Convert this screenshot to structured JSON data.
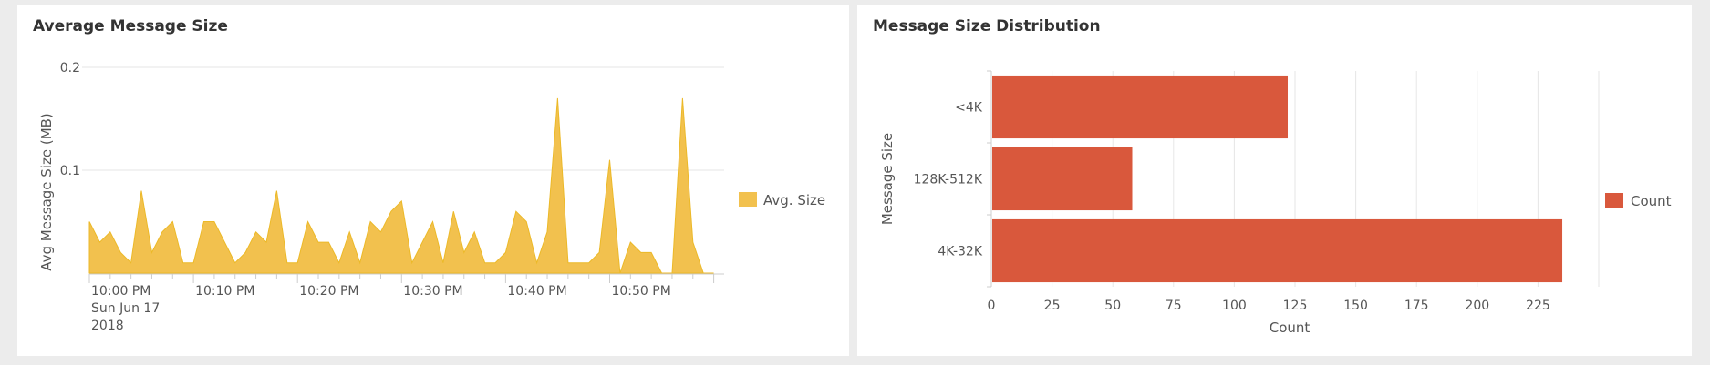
{
  "panels": {
    "left": {
      "title": "Average Message Size"
    },
    "right": {
      "title": "Message Size Distribution"
    }
  },
  "colors": {
    "area": "#f2c14e",
    "area_stroke": "#ecb928",
    "bar": "#d9583c",
    "grid": "#e6e6e6",
    "axis": "#cccccc"
  },
  "chart_data": [
    {
      "type": "area",
      "title": "Average Message Size",
      "ylabel": "Avg Message Size (MB)",
      "xlabel": "",
      "ylim": [
        0,
        0.2
      ],
      "yticks": [
        {
          "value": 0.1,
          "label": "0.1"
        },
        {
          "value": 0.2,
          "label": "0.2"
        }
      ],
      "xticks": [
        {
          "value": 0,
          "lines": [
            "10:00 PM",
            "Sun Jun 17",
            "2018"
          ]
        },
        {
          "value": 10,
          "lines": [
            "10:10 PM"
          ]
        },
        {
          "value": 20,
          "lines": [
            "10:20 PM"
          ]
        },
        {
          "value": 30,
          "lines": [
            "10:30 PM"
          ]
        },
        {
          "value": 40,
          "lines": [
            "10:40 PM"
          ]
        },
        {
          "value": 50,
          "lines": [
            "10:50 PM"
          ]
        }
      ],
      "xlim": [
        0,
        61
      ],
      "legend": "Avg. Size",
      "legend_position": "right",
      "x": [
        0,
        1,
        2,
        3,
        4,
        5,
        6,
        7,
        8,
        9,
        10,
        11,
        12,
        13,
        14,
        15,
        16,
        17,
        18,
        19,
        20,
        21,
        22,
        23,
        24,
        25,
        26,
        27,
        28,
        29,
        30,
        31,
        32,
        33,
        34,
        35,
        36,
        37,
        38,
        39,
        40,
        41,
        42,
        43,
        44,
        45,
        46,
        47,
        48,
        49,
        50,
        51,
        52,
        53,
        54,
        55,
        56,
        57,
        58,
        59,
        60
      ],
      "values": [
        0.05,
        0.03,
        0.04,
        0.02,
        0.01,
        0.08,
        0.02,
        0.04,
        0.05,
        0.01,
        0.01,
        0.05,
        0.05,
        0.03,
        0.01,
        0.02,
        0.04,
        0.03,
        0.08,
        0.01,
        0.01,
        0.05,
        0.03,
        0.03,
        0.01,
        0.04,
        0.01,
        0.05,
        0.04,
        0.06,
        0.07,
        0.01,
        0.03,
        0.05,
        0.01,
        0.06,
        0.02,
        0.04,
        0.01,
        0.01,
        0.02,
        0.06,
        0.05,
        0.01,
        0.04,
        0.17,
        0.01,
        0.01,
        0.01,
        0.02,
        0.11,
        0.0,
        0.03,
        0.02,
        0.02,
        0.0,
        0.0,
        0.17,
        0.03,
        0.0,
        0.0
      ]
    },
    {
      "type": "bar",
      "orientation": "horizontal",
      "title": "Message Size Distribution",
      "categories": [
        "<4K",
        "128K-512K",
        "4K-32K"
      ],
      "values": [
        122,
        58,
        235
      ],
      "ylabel": "Message Size",
      "xlabel": "Count",
      "xlim": [
        0,
        250
      ],
      "xticks": [
        0,
        25,
        50,
        75,
        100,
        125,
        150,
        175,
        200,
        225
      ],
      "legend": "Count",
      "legend_position": "right"
    }
  ]
}
